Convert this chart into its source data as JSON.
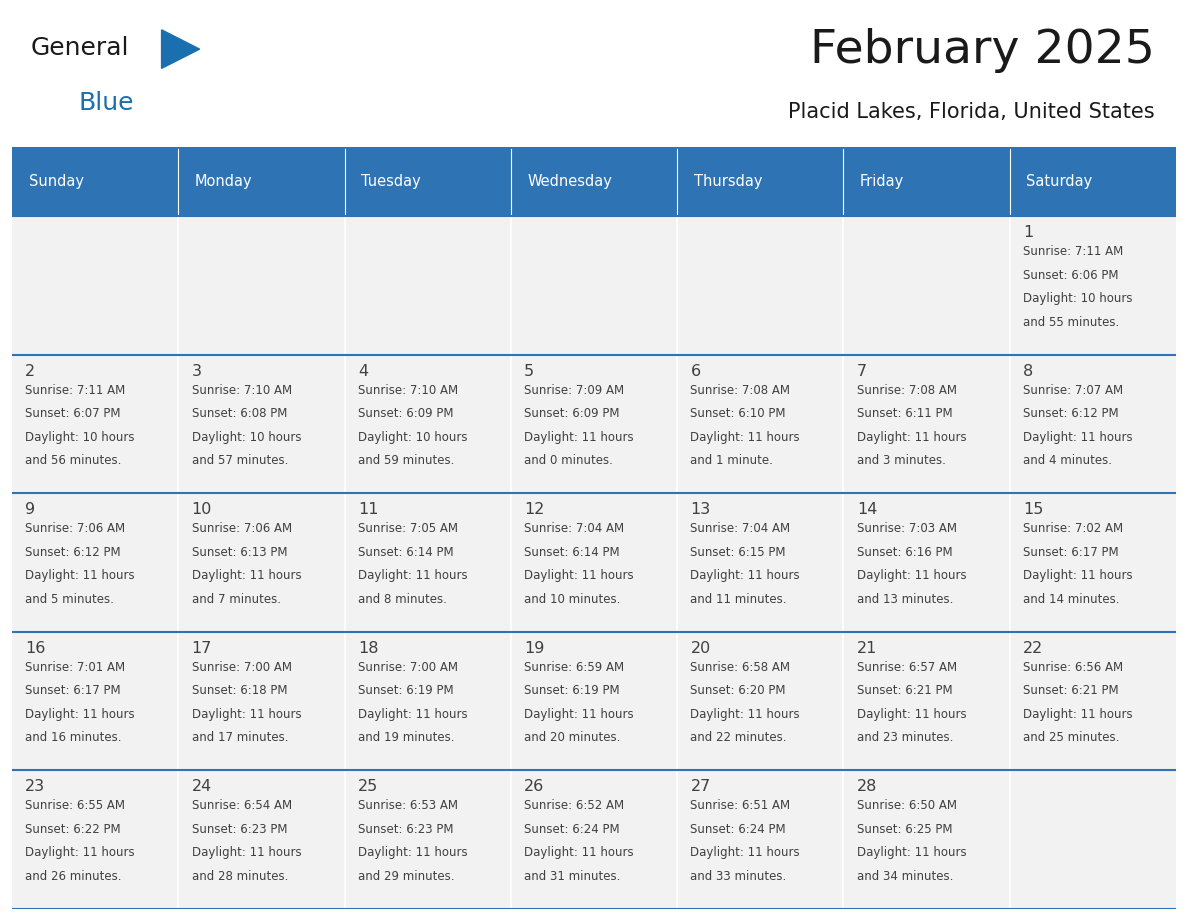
{
  "title": "February 2025",
  "subtitle": "Placid Lakes, Florida, United States",
  "days_of_week": [
    "Sunday",
    "Monday",
    "Tuesday",
    "Wednesday",
    "Thursday",
    "Friday",
    "Saturday"
  ],
  "header_bg": "#2e74b5",
  "header_text": "#ffffff",
  "cell_bg": "#f2f2f2",
  "border_color": "#2e74b5",
  "text_color": "#404040",
  "title_color": "#1a1a1a",
  "subtitle_color": "#1a1a1a",
  "calendar_data": [
    [
      null,
      null,
      null,
      null,
      null,
      null,
      {
        "day": 1,
        "sunrise": "7:11 AM",
        "sunset": "6:06 PM",
        "daylight": "10 hours",
        "daylight2": "and 55 minutes."
      }
    ],
    [
      {
        "day": 2,
        "sunrise": "7:11 AM",
        "sunset": "6:07 PM",
        "daylight": "10 hours",
        "daylight2": "and 56 minutes."
      },
      {
        "day": 3,
        "sunrise": "7:10 AM",
        "sunset": "6:08 PM",
        "daylight": "10 hours",
        "daylight2": "and 57 minutes."
      },
      {
        "day": 4,
        "sunrise": "7:10 AM",
        "sunset": "6:09 PM",
        "daylight": "10 hours",
        "daylight2": "and 59 minutes."
      },
      {
        "day": 5,
        "sunrise": "7:09 AM",
        "sunset": "6:09 PM",
        "daylight": "11 hours",
        "daylight2": "and 0 minutes."
      },
      {
        "day": 6,
        "sunrise": "7:08 AM",
        "sunset": "6:10 PM",
        "daylight": "11 hours",
        "daylight2": "and 1 minute."
      },
      {
        "day": 7,
        "sunrise": "7:08 AM",
        "sunset": "6:11 PM",
        "daylight": "11 hours",
        "daylight2": "and 3 minutes."
      },
      {
        "day": 8,
        "sunrise": "7:07 AM",
        "sunset": "6:12 PM",
        "daylight": "11 hours",
        "daylight2": "and 4 minutes."
      }
    ],
    [
      {
        "day": 9,
        "sunrise": "7:06 AM",
        "sunset": "6:12 PM",
        "daylight": "11 hours",
        "daylight2": "and 5 minutes."
      },
      {
        "day": 10,
        "sunrise": "7:06 AM",
        "sunset": "6:13 PM",
        "daylight": "11 hours",
        "daylight2": "and 7 minutes."
      },
      {
        "day": 11,
        "sunrise": "7:05 AM",
        "sunset": "6:14 PM",
        "daylight": "11 hours",
        "daylight2": "and 8 minutes."
      },
      {
        "day": 12,
        "sunrise": "7:04 AM",
        "sunset": "6:14 PM",
        "daylight": "11 hours",
        "daylight2": "and 10 minutes."
      },
      {
        "day": 13,
        "sunrise": "7:04 AM",
        "sunset": "6:15 PM",
        "daylight": "11 hours",
        "daylight2": "and 11 minutes."
      },
      {
        "day": 14,
        "sunrise": "7:03 AM",
        "sunset": "6:16 PM",
        "daylight": "11 hours",
        "daylight2": "and 13 minutes."
      },
      {
        "day": 15,
        "sunrise": "7:02 AM",
        "sunset": "6:17 PM",
        "daylight": "11 hours",
        "daylight2": "and 14 minutes."
      }
    ],
    [
      {
        "day": 16,
        "sunrise": "7:01 AM",
        "sunset": "6:17 PM",
        "daylight": "11 hours",
        "daylight2": "and 16 minutes."
      },
      {
        "day": 17,
        "sunrise": "7:00 AM",
        "sunset": "6:18 PM",
        "daylight": "11 hours",
        "daylight2": "and 17 minutes."
      },
      {
        "day": 18,
        "sunrise": "7:00 AM",
        "sunset": "6:19 PM",
        "daylight": "11 hours",
        "daylight2": "and 19 minutes."
      },
      {
        "day": 19,
        "sunrise": "6:59 AM",
        "sunset": "6:19 PM",
        "daylight": "11 hours",
        "daylight2": "and 20 minutes."
      },
      {
        "day": 20,
        "sunrise": "6:58 AM",
        "sunset": "6:20 PM",
        "daylight": "11 hours",
        "daylight2": "and 22 minutes."
      },
      {
        "day": 21,
        "sunrise": "6:57 AM",
        "sunset": "6:21 PM",
        "daylight": "11 hours",
        "daylight2": "and 23 minutes."
      },
      {
        "day": 22,
        "sunrise": "6:56 AM",
        "sunset": "6:21 PM",
        "daylight": "11 hours",
        "daylight2": "and 25 minutes."
      }
    ],
    [
      {
        "day": 23,
        "sunrise": "6:55 AM",
        "sunset": "6:22 PM",
        "daylight": "11 hours",
        "daylight2": "and 26 minutes."
      },
      {
        "day": 24,
        "sunrise": "6:54 AM",
        "sunset": "6:23 PM",
        "daylight": "11 hours",
        "daylight2": "and 28 minutes."
      },
      {
        "day": 25,
        "sunrise": "6:53 AM",
        "sunset": "6:23 PM",
        "daylight": "11 hours",
        "daylight2": "and 29 minutes."
      },
      {
        "day": 26,
        "sunrise": "6:52 AM",
        "sunset": "6:24 PM",
        "daylight": "11 hours",
        "daylight2": "and 31 minutes."
      },
      {
        "day": 27,
        "sunrise": "6:51 AM",
        "sunset": "6:24 PM",
        "daylight": "11 hours",
        "daylight2": "and 33 minutes."
      },
      {
        "day": 28,
        "sunrise": "6:50 AM",
        "sunset": "6:25 PM",
        "daylight": "11 hours",
        "daylight2": "and 34 minutes."
      },
      null
    ]
  ],
  "logo_color_general": "#1a1a1a",
  "logo_color_blue": "#1a6faf"
}
